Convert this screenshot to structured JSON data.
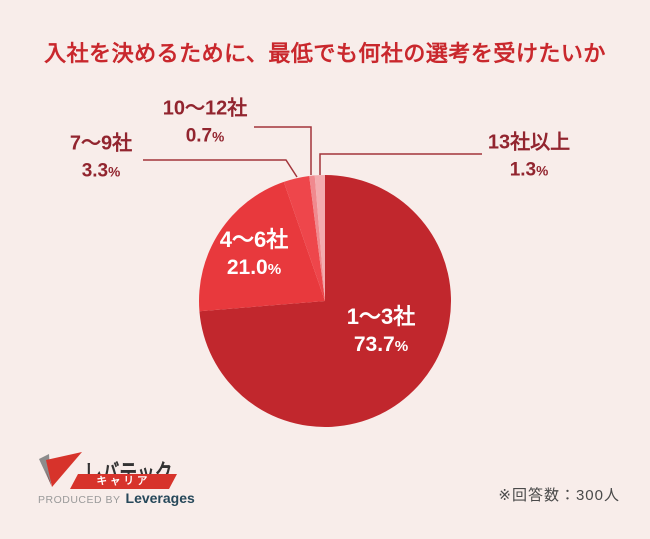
{
  "header": {
    "title": "入社を決めるために、最低でも何社の選考を受けたいか"
  },
  "chart_data": {
    "type": "pie",
    "title": "入社を決めるために、最低でも何社の選考を受けたいか",
    "categories": [
      "1〜3社",
      "4〜6社",
      "7〜9社",
      "10〜12社",
      "13社以上"
    ],
    "values": [
      73.7,
      21.0,
      3.3,
      0.7,
      1.3
    ],
    "value_labels": [
      "73.7",
      "21.0",
      "3.3",
      "0.7",
      "1.3"
    ],
    "unit": "%",
    "colors": [
      "#c1272d",
      "#e8393d",
      "#ee464b",
      "#f0898e",
      "#f3acaf"
    ],
    "start_angle_deg": -90,
    "direction": "clockwise",
    "legend": "none",
    "label_placement": "large slices labeled inside, small slices labeled outside with leader lines",
    "total_respondents": 300
  },
  "footer": {
    "note": "※回答数：300人"
  },
  "logo": {
    "brand": "レバテック",
    "banner_label": "キャリア",
    "produced_by": "PRODUCED BY",
    "company": "Leverages"
  },
  "colors": {
    "bg": "#f8edea",
    "title": "#c9282d",
    "outer-label": "#92252f",
    "inner-label": "#ffffff",
    "leader": "#a3353b",
    "note": "#4a4a4a",
    "logo-red": "#d7332b",
    "logo-gray": "#8c8c8c",
    "logo-dark": "#8e1e25",
    "logo-text": "#333333",
    "logo-company": "#26485a",
    "logo-produced": "#9a9a9a"
  }
}
